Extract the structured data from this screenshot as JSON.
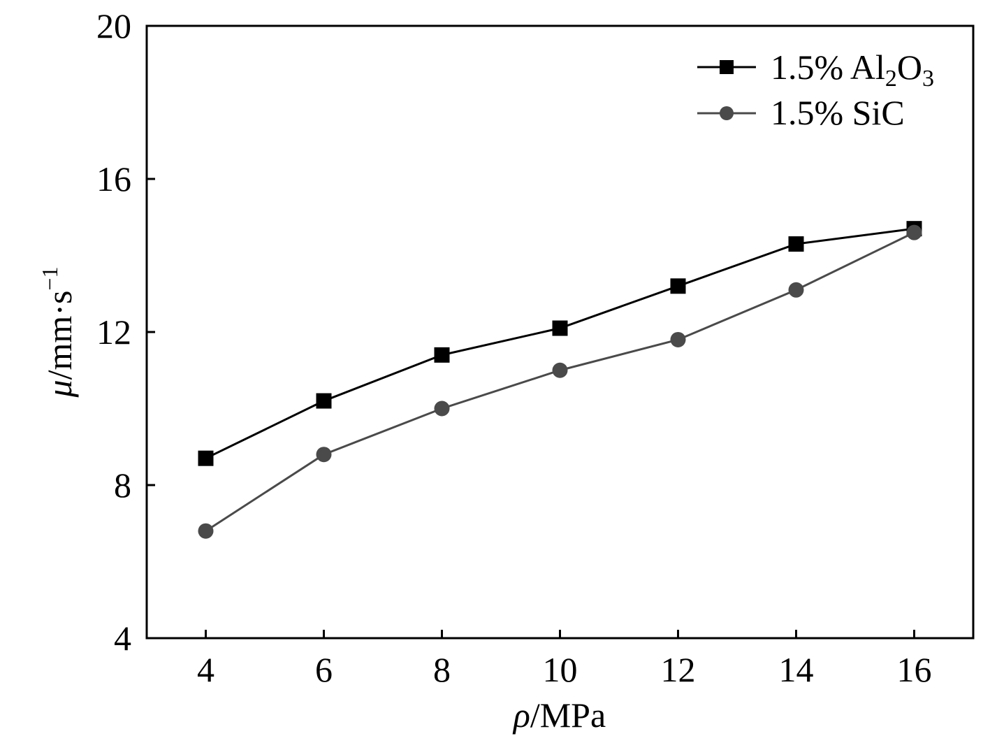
{
  "chart_data": {
    "type": "line",
    "title": "",
    "xlabel": {
      "symbol": "ρ",
      "unit": "/MPa"
    },
    "ylabel": {
      "symbol": "μ",
      "unit": "/mm·s",
      "exponent": "−1"
    },
    "xlim": [
      3,
      17
    ],
    "ylim": [
      4,
      20
    ],
    "x": [
      4,
      6,
      8,
      10,
      12,
      14,
      16
    ],
    "xticks": [
      "4",
      "6",
      "8",
      "10",
      "12",
      "14",
      "16"
    ],
    "yticks": [
      "4",
      "8",
      "12",
      "16",
      "20"
    ],
    "grid": false,
    "legend_position": "top-right",
    "series": [
      {
        "name": "1.5% Al2O3",
        "legend": {
          "prefix": "1.5% Al",
          "sub1": "2",
          "mid": "O",
          "sub2": "3"
        },
        "marker": "square",
        "color": "#000000",
        "values": [
          8.7,
          10.2,
          11.4,
          12.1,
          13.2,
          14.3,
          14.7
        ]
      },
      {
        "name": "1.5% SiC",
        "legend": {
          "text": "1.5% SiC"
        },
        "marker": "circle",
        "color": "#4a4a4a",
        "values": [
          6.8,
          8.8,
          10.0,
          11.0,
          11.8,
          13.1,
          14.6
        ]
      }
    ]
  }
}
